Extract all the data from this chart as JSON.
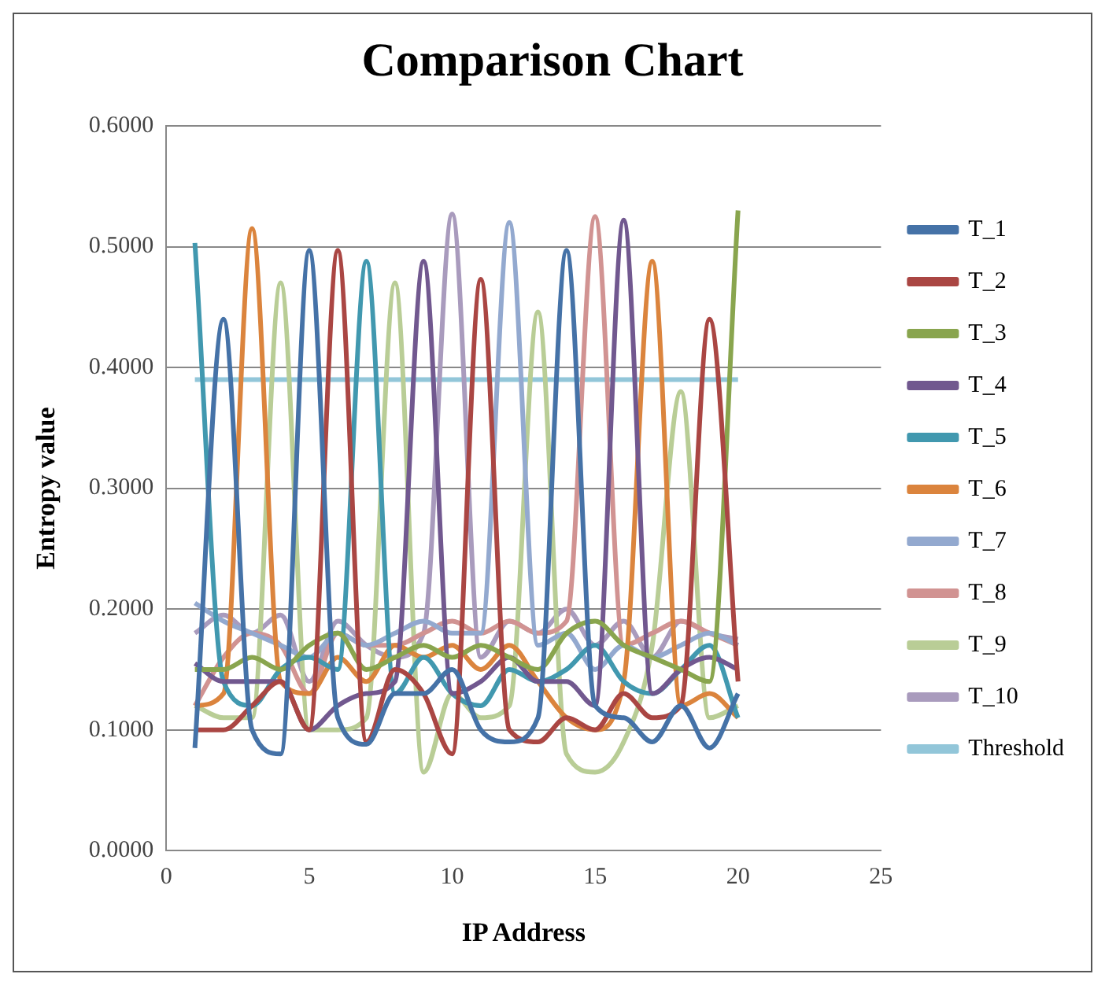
{
  "chart_data": {
    "type": "line",
    "title": "Comparison Chart",
    "xlabel": "IP Address",
    "ylabel": "Entropy value",
    "x": [
      1,
      2,
      3,
      4,
      5,
      6,
      7,
      8,
      9,
      10,
      11,
      12,
      13,
      14,
      15,
      16,
      17,
      18,
      19,
      20
    ],
    "xlim": [
      0,
      25
    ],
    "xticks": [
      0,
      5,
      10,
      15,
      20,
      25
    ],
    "ylim": [
      0,
      0.6
    ],
    "yticks": [
      {
        "value": 0,
        "label": "0.0000"
      },
      {
        "value": 0.1,
        "label": "0.1000"
      },
      {
        "value": 0.2,
        "label": "0.2000"
      },
      {
        "value": 0.3,
        "label": "0.3000"
      },
      {
        "value": 0.4,
        "label": "0.4000"
      },
      {
        "value": 0.5,
        "label": "0.5000"
      },
      {
        "value": 0.6,
        "label": "0.6000"
      }
    ],
    "grid": "y",
    "legend": "right",
    "marker": "none",
    "line_style": "solid",
    "series": [
      {
        "name": "T_1",
        "color": "#4572a7",
        "values": [
          0.085,
          0.44,
          0.1,
          0.08,
          0.497,
          0.11,
          0.088,
          0.13,
          0.13,
          0.15,
          0.1,
          0.09,
          0.11,
          0.497,
          0.12,
          0.11,
          0.09,
          0.12,
          0.085,
          0.13
        ]
      },
      {
        "name": "T_2",
        "color": "#aa4643",
        "values": [
          0.1,
          0.1,
          0.12,
          0.14,
          0.1,
          0.497,
          0.09,
          0.15,
          0.13,
          0.08,
          0.473,
          0.1,
          0.09,
          0.11,
          0.1,
          0.13,
          0.11,
          0.12,
          0.44,
          0.14
        ]
      },
      {
        "name": "T_3",
        "color": "#89a54e",
        "values": [
          0.15,
          0.15,
          0.16,
          0.15,
          0.17,
          0.18,
          0.15,
          0.16,
          0.17,
          0.16,
          0.17,
          0.16,
          0.15,
          0.18,
          0.19,
          0.17,
          0.16,
          0.15,
          0.14,
          0.53
        ]
      },
      {
        "name": "T_4",
        "color": "#71588f",
        "values": [
          0.155,
          0.14,
          0.14,
          0.14,
          0.1,
          0.12,
          0.13,
          0.14,
          0.488,
          0.13,
          0.14,
          0.16,
          0.14,
          0.14,
          0.12,
          0.522,
          0.13,
          0.15,
          0.16,
          0.15
        ]
      },
      {
        "name": "T_5",
        "color": "#4198af",
        "values": [
          0.503,
          0.14,
          0.12,
          0.15,
          0.16,
          0.15,
          0.488,
          0.13,
          0.16,
          0.13,
          0.12,
          0.15,
          0.14,
          0.15,
          0.17,
          0.14,
          0.13,
          0.15,
          0.17,
          0.11
        ]
      },
      {
        "name": "T_6",
        "color": "#db843d",
        "values": [
          0.12,
          0.13,
          0.515,
          0.14,
          0.13,
          0.16,
          0.14,
          0.17,
          0.16,
          0.17,
          0.15,
          0.17,
          0.14,
          0.11,
          0.1,
          0.14,
          0.488,
          0.12,
          0.13,
          0.11
        ]
      },
      {
        "name": "T_7",
        "color": "#93a9cf",
        "values": [
          0.205,
          0.19,
          0.18,
          0.17,
          0.16,
          0.18,
          0.17,
          0.18,
          0.19,
          0.18,
          0.18,
          0.52,
          0.17,
          0.18,
          0.15,
          0.17,
          0.16,
          0.17,
          0.18,
          0.17
        ]
      },
      {
        "name": "T_8",
        "color": "#d19392",
        "values": [
          0.12,
          0.16,
          0.18,
          0.17,
          0.13,
          0.18,
          0.17,
          0.17,
          0.18,
          0.19,
          0.18,
          0.19,
          0.18,
          0.19,
          0.525,
          0.17,
          0.18,
          0.19,
          0.18,
          0.17
        ]
      },
      {
        "name": "T_9",
        "color": "#b9cd96",
        "values": [
          0.12,
          0.11,
          0.11,
          0.47,
          0.1,
          0.1,
          0.11,
          0.47,
          0.065,
          0.13,
          0.11,
          0.12,
          0.446,
          0.08,
          0.065,
          0.09,
          0.17,
          0.38,
          0.11,
          0.12
        ]
      },
      {
        "name": "T_10",
        "color": "#a99bbd",
        "values": [
          0.18,
          0.195,
          0.18,
          0.195,
          0.14,
          0.19,
          0.17,
          0.16,
          0.18,
          0.527,
          0.16,
          0.19,
          0.18,
          0.2,
          0.17,
          0.19,
          0.16,
          0.19,
          0.18,
          0.175
        ]
      },
      {
        "name": "Threshold",
        "color": "#92c6d9",
        "values": [
          0.39,
          0.39,
          0.39,
          0.39,
          0.39,
          0.39,
          0.39,
          0.39,
          0.39,
          0.39,
          0.39,
          0.39,
          0.39,
          0.39,
          0.39,
          0.39,
          0.39,
          0.39,
          0.39,
          0.39
        ]
      }
    ]
  }
}
